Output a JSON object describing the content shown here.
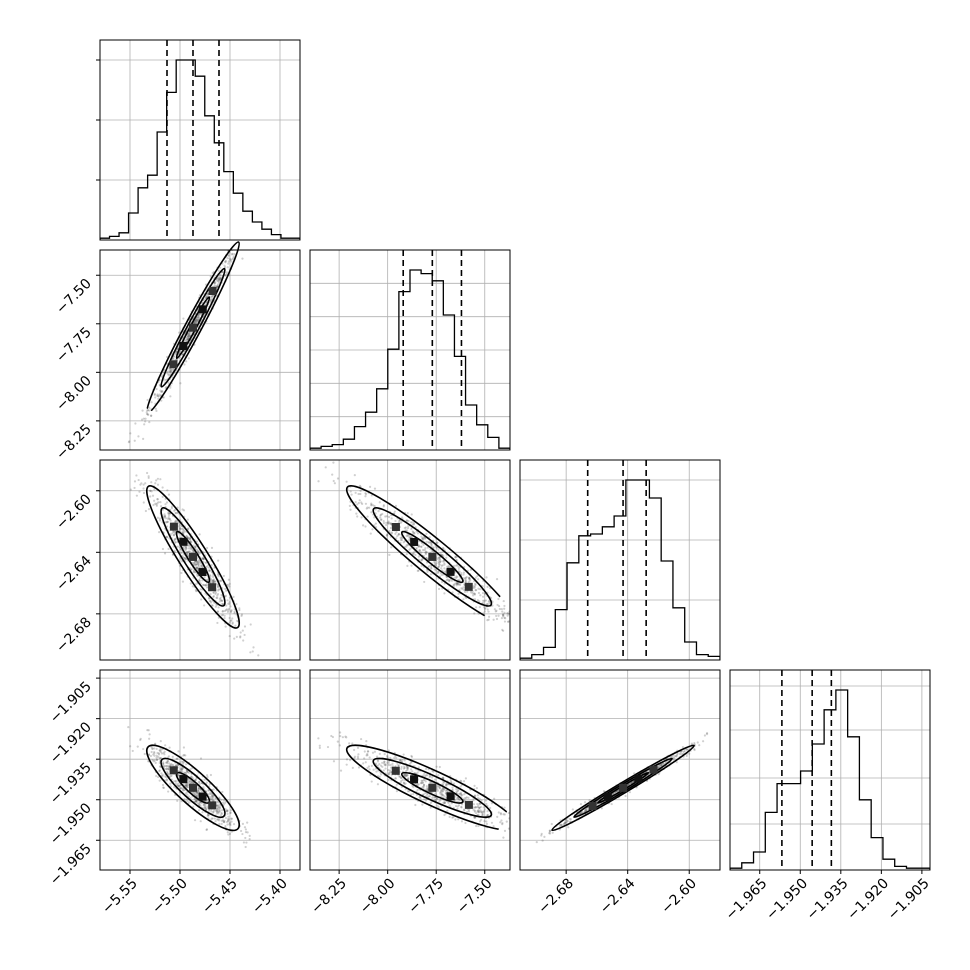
{
  "chart_data": {
    "type": "corner",
    "parameters": [
      {
        "ticks": [
          -5.55,
          -5.5,
          -5.45,
          -5.4
        ],
        "tick_labels": [
          "−5.55",
          "−5.50",
          "−5.45",
          "−5.40"
        ],
        "range": [
          -5.58,
          -5.38
        ],
        "quantiles": [
          -5.513,
          -5.487,
          -5.461
        ]
      },
      {
        "ticks": [
          -8.25,
          -8.0,
          -7.75,
          -7.5
        ],
        "tick_labels": [
          "−8.25",
          "−8.00",
          "−7.75",
          "−7.50"
        ],
        "range": [
          -8.4,
          -7.37
        ],
        "quantiles": [
          -7.92,
          -7.77,
          -7.62
        ]
      },
      {
        "ticks": [
          -2.68,
          -2.64,
          -2.6
        ],
        "tick_labels": [
          "−2.68",
          "−2.64",
          "−2.60"
        ],
        "range": [
          -2.71,
          -2.58
        ],
        "quantiles": [
          -2.666,
          -2.643,
          -2.628
        ]
      },
      {
        "ticks": [
          -1.965,
          -1.95,
          -1.935,
          -1.92,
          -1.905
        ],
        "tick_labels": [
          "−1.965",
          "−1.950",
          "−1.935",
          "−1.920",
          "−1.905"
        ],
        "range": [
          -1.976,
          -1.902
        ],
        "quantiles": [
          -1.9568,
          -1.9456,
          -1.9385
        ]
      }
    ],
    "histograms": [
      [
        0.01,
        0.02,
        0.04,
        0.15,
        0.29,
        0.36,
        0.6,
        0.82,
        1.0,
        1.0,
        0.91,
        0.69,
        0.54,
        0.38,
        0.26,
        0.16,
        0.1,
        0.06,
        0.03,
        0.01,
        0.01
      ],
      [
        0.01,
        0.02,
        0.03,
        0.06,
        0.13,
        0.21,
        0.34,
        0.56,
        0.88,
        1.0,
        0.98,
        0.94,
        0.75,
        0.52,
        0.25,
        0.14,
        0.07,
        0.01
      ],
      [
        0.01,
        0.03,
        0.07,
        0.28,
        0.54,
        0.69,
        0.7,
        0.74,
        0.8,
        1.0,
        1.0,
        0.9,
        0.55,
        0.29,
        0.1,
        0.03,
        0.02
      ],
      [
        0.01,
        0.04,
        0.1,
        0.32,
        0.48,
        0.48,
        0.55,
        0.7,
        0.89,
        1.0,
        0.74,
        0.39,
        0.18,
        0.06,
        0.02,
        0.01,
        0.01
      ]
    ],
    "correlations": {
      "1-0": 0.98,
      "2-0": -0.93,
      "2-1": -0.95,
      "3-0": -0.87,
      "3-1": -0.9,
      "3-2": 0.99
    }
  }
}
